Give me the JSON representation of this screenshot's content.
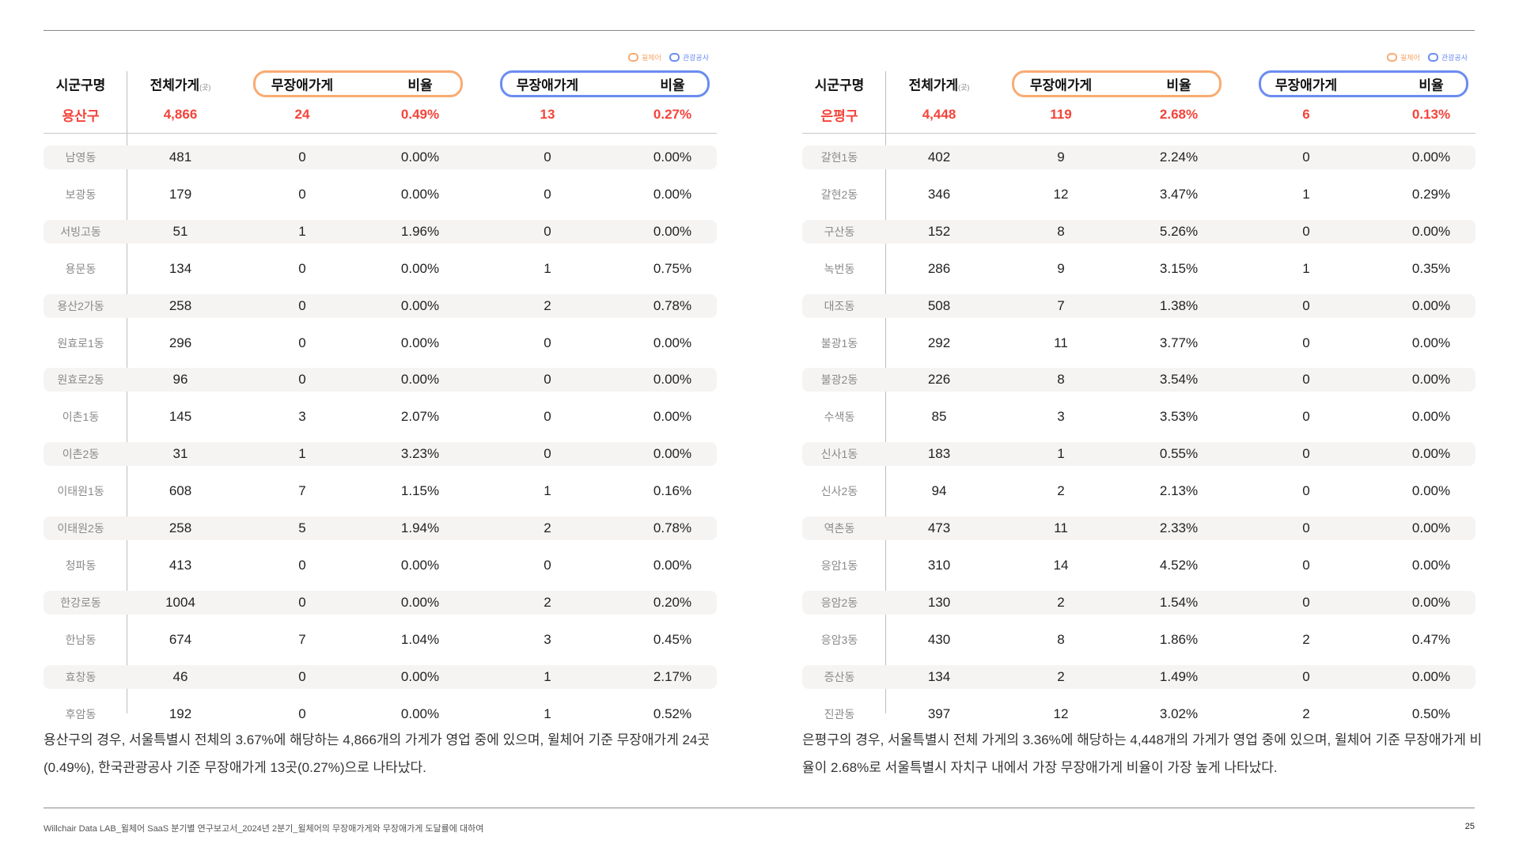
{
  "legend": {
    "wheelchair": "윌체어",
    "tourism": "관광공사"
  },
  "colors": {
    "wheelchair": "#f9ab72",
    "tourism": "#6b8cf0",
    "highlight": "#f5433a",
    "stripe": "#f5f4f2"
  },
  "headers": {
    "district": "시군구명",
    "total": "전체가게",
    "total_unit": "(곳)",
    "barrier_free": "무장애가게",
    "ratio": "비율"
  },
  "tables": [
    {
      "summary": {
        "name": "용산구",
        "total": "4,866",
        "wc_count": "24",
        "wc_ratio": "0.49%",
        "kt_count": "13",
        "kt_ratio": "0.27%"
      },
      "rows": [
        [
          "남영동",
          "481",
          "0",
          "0.00%",
          "0",
          "0.00%"
        ],
        [
          "보광동",
          "179",
          "0",
          "0.00%",
          "0",
          "0.00%"
        ],
        [
          "서빙고동",
          "51",
          "1",
          "1.96%",
          "0",
          "0.00%"
        ],
        [
          "용문동",
          "134",
          "0",
          "0.00%",
          "1",
          "0.75%"
        ],
        [
          "용산2가동",
          "258",
          "0",
          "0.00%",
          "2",
          "0.78%"
        ],
        [
          "원효로1동",
          "296",
          "0",
          "0.00%",
          "0",
          "0.00%"
        ],
        [
          "원효로2동",
          "96",
          "0",
          "0.00%",
          "0",
          "0.00%"
        ],
        [
          "이촌1동",
          "145",
          "3",
          "2.07%",
          "0",
          "0.00%"
        ],
        [
          "이촌2동",
          "31",
          "1",
          "3.23%",
          "0",
          "0.00%"
        ],
        [
          "이태원1동",
          "608",
          "7",
          "1.15%",
          "1",
          "0.16%"
        ],
        [
          "이태원2동",
          "258",
          "5",
          "1.94%",
          "2",
          "0.78%"
        ],
        [
          "청파동",
          "413",
          "0",
          "0.00%",
          "0",
          "0.00%"
        ],
        [
          "한강로동",
          "1004",
          "0",
          "0.00%",
          "2",
          "0.20%"
        ],
        [
          "한남동",
          "674",
          "7",
          "1.04%",
          "3",
          "0.45%"
        ],
        [
          "효창동",
          "46",
          "0",
          "0.00%",
          "1",
          "2.17%"
        ],
        [
          "후암동",
          "192",
          "0",
          "0.00%",
          "1",
          "0.52%"
        ]
      ],
      "paragraph": "  용산구의 경우, 서울특별시 전체의 3.67%에 해당하는 4,866개의 가게가 영업 중에 있으며, 윌체어 기준 무장애가게 24곳(0.49%), 한국관광공사 기준 무장애가게 13곳(0.27%)으로 나타났다."
    },
    {
      "summary": {
        "name": "은평구",
        "total": "4,448",
        "wc_count": "119",
        "wc_ratio": "2.68%",
        "kt_count": "6",
        "kt_ratio": "0.13%"
      },
      "rows": [
        [
          "갈현1동",
          "402",
          "9",
          "2.24%",
          "0",
          "0.00%"
        ],
        [
          "갈현2동",
          "346",
          "12",
          "3.47%",
          "1",
          "0.29%"
        ],
        [
          "구산동",
          "152",
          "8",
          "5.26%",
          "0",
          "0.00%"
        ],
        [
          "녹번동",
          "286",
          "9",
          "3.15%",
          "1",
          "0.35%"
        ],
        [
          "대조동",
          "508",
          "7",
          "1.38%",
          "0",
          "0.00%"
        ],
        [
          "불광1동",
          "292",
          "11",
          "3.77%",
          "0",
          "0.00%"
        ],
        [
          "불광2동",
          "226",
          "8",
          "3.54%",
          "0",
          "0.00%"
        ],
        [
          "수색동",
          "85",
          "3",
          "3.53%",
          "0",
          "0.00%"
        ],
        [
          "신사1동",
          "183",
          "1",
          "0.55%",
          "0",
          "0.00%"
        ],
        [
          "신사2동",
          "94",
          "2",
          "2.13%",
          "0",
          "0.00%"
        ],
        [
          "역촌동",
          "473",
          "11",
          "2.33%",
          "0",
          "0.00%"
        ],
        [
          "응암1동",
          "310",
          "14",
          "4.52%",
          "0",
          "0.00%"
        ],
        [
          "응암2동",
          "130",
          "2",
          "1.54%",
          "0",
          "0.00%"
        ],
        [
          "응암3동",
          "430",
          "8",
          "1.86%",
          "2",
          "0.47%"
        ],
        [
          "증산동",
          "134",
          "2",
          "1.49%",
          "0",
          "0.00%"
        ],
        [
          "진관동",
          "397",
          "12",
          "3.02%",
          "2",
          "0.50%"
        ]
      ],
      "paragraph": "  은평구의 경우, 서울특별시 전체 가게의 3.36%에 해당하는 4,448개의 가게가 영업 중에 있으며, 윌체어 기준 무장애가게 비율이 2.68%로 서울특별시 자치구 내에서 가장 무장애가게 비율이 가장 높게 나타났다."
    }
  ],
  "footer": {
    "text": "Willchair Data LAB_윌체어 SaaS 분기별 연구보고서_2024년 2분기_윌체어의 무장애가게와 무장애가게 도달률에 대하여",
    "page": "25"
  }
}
